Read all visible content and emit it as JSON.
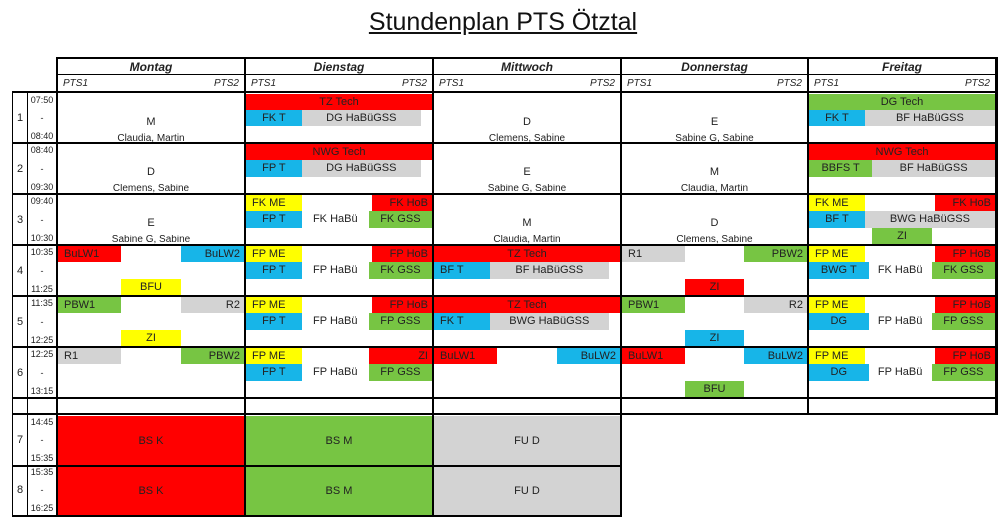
{
  "title": "Stundenplan PTS Ötztal",
  "days": [
    "Montag",
    "Dienstag",
    "Mittwoch",
    "Donnerstag",
    "Freitag"
  ],
  "subheaders": [
    "PTS1",
    "PTS2"
  ],
  "periods": [
    {
      "num": "1",
      "start": "07:50",
      "sep": "-",
      "end": "08:40"
    },
    {
      "num": "2",
      "start": "08:40",
      "sep": "-",
      "end": "09:30"
    },
    {
      "num": "3",
      "start": "09:40",
      "sep": "-",
      "end": "10:30"
    },
    {
      "num": "4",
      "start": "10:35",
      "sep": "-",
      "end": "11:25"
    },
    {
      "num": "5",
      "start": "11:35",
      "sep": "-",
      "end": "12:25"
    },
    {
      "num": "6",
      "start": "12:25",
      "sep": "-",
      "end": "13:15"
    },
    {
      "num": "7",
      "start": "14:45",
      "sep": "-",
      "end": "15:35"
    },
    {
      "num": "8",
      "start": "15:35",
      "sep": "-",
      "end": "16:25"
    }
  ],
  "colors": {
    "red": "#ff0000",
    "blue": "#17b5e8",
    "green": "#77c543",
    "yellow": "#ffff00",
    "gray": "#d3d3d3",
    "white": "#ffffff"
  },
  "cells": [
    {
      "text": "M",
      "d": 0,
      "p": 0,
      "a": 0,
      "b": 1,
      "y0": 0.35,
      "y1": 0.8,
      "bg": "white"
    },
    {
      "text": "Claudia,  Martin",
      "d": 0,
      "p": 0,
      "a": 0,
      "b": 1,
      "y0": 0.8,
      "y1": 1,
      "bg": "white",
      "small": true
    },
    {
      "text": "TZ Tech",
      "d": 1,
      "p": 0,
      "a": 0,
      "b": 1,
      "y0": 0.02,
      "y1": 0.33,
      "bg": "red"
    },
    {
      "text": "FK T",
      "d": 1,
      "p": 0,
      "a": 0,
      "b": 0.3,
      "y0": 0.33,
      "y1": 0.66,
      "bg": "blue"
    },
    {
      "text": "DG HaBüGSS",
      "d": 1,
      "p": 0,
      "a": 0.3,
      "b": 0.94,
      "y0": 0.33,
      "y1": 0.66,
      "bg": "gray"
    },
    {
      "text": "D",
      "d": 2,
      "p": 0,
      "a": 0,
      "b": 1,
      "y0": 0.35,
      "y1": 0.8,
      "bg": "white"
    },
    {
      "text": "Clemens, Sabine",
      "d": 2,
      "p": 0,
      "a": 0,
      "b": 1,
      "y0": 0.8,
      "y1": 1,
      "bg": "white",
      "small": true
    },
    {
      "text": "E",
      "d": 3,
      "p": 0,
      "a": 0,
      "b": 1,
      "y0": 0.35,
      "y1": 0.8,
      "bg": "white"
    },
    {
      "text": "Sabine G, Sabine",
      "d": 3,
      "p": 0,
      "a": 0,
      "b": 1,
      "y0": 0.8,
      "y1": 1,
      "bg": "white",
      "small": true
    },
    {
      "text": "DG Tech",
      "d": 4,
      "p": 0,
      "a": 0,
      "b": 1,
      "y0": 0.02,
      "y1": 0.33,
      "bg": "green"
    },
    {
      "text": "FK T",
      "d": 4,
      "p": 0,
      "a": 0,
      "b": 0.3,
      "y0": 0.33,
      "y1": 0.66,
      "bg": "blue"
    },
    {
      "text": "BF HaBüGSS",
      "d": 4,
      "p": 0,
      "a": 0.3,
      "b": 1,
      "y0": 0.33,
      "y1": 0.66,
      "bg": "gray"
    },
    {
      "text": "D",
      "d": 0,
      "p": 1,
      "a": 0,
      "b": 1,
      "y0": 0.35,
      "y1": 0.8,
      "bg": "white"
    },
    {
      "text": "Clemens, Sabine",
      "d": 0,
      "p": 1,
      "a": 0,
      "b": 1,
      "y0": 0.8,
      "y1": 1,
      "bg": "white",
      "small": true
    },
    {
      "text": "NWG Tech",
      "d": 1,
      "p": 1,
      "a": 0,
      "b": 1,
      "y0": 0.02,
      "y1": 0.33,
      "bg": "red"
    },
    {
      "text": "FP T",
      "d": 1,
      "p": 1,
      "a": 0,
      "b": 0.3,
      "y0": 0.33,
      "y1": 0.66,
      "bg": "blue"
    },
    {
      "text": "DG HaBüGSS",
      "d": 1,
      "p": 1,
      "a": 0.3,
      "b": 0.94,
      "y0": 0.33,
      "y1": 0.66,
      "bg": "gray"
    },
    {
      "text": "E",
      "d": 2,
      "p": 1,
      "a": 0,
      "b": 1,
      "y0": 0.35,
      "y1": 0.8,
      "bg": "white"
    },
    {
      "text": "Sabine G, Sabine",
      "d": 2,
      "p": 1,
      "a": 0,
      "b": 1,
      "y0": 0.8,
      "y1": 1,
      "bg": "white",
      "small": true
    },
    {
      "text": "M",
      "d": 3,
      "p": 1,
      "a": 0,
      "b": 1,
      "y0": 0.35,
      "y1": 0.8,
      "bg": "white"
    },
    {
      "text": "Claudia, Martin",
      "d": 3,
      "p": 1,
      "a": 0,
      "b": 1,
      "y0": 0.8,
      "y1": 1,
      "bg": "white",
      "small": true
    },
    {
      "text": "NWG Tech",
      "d": 4,
      "p": 1,
      "a": 0,
      "b": 1,
      "y0": 0.02,
      "y1": 0.33,
      "bg": "red"
    },
    {
      "text": "BBFS T",
      "d": 4,
      "p": 1,
      "a": 0,
      "b": 0.34,
      "y0": 0.33,
      "y1": 0.66,
      "bg": "green"
    },
    {
      "text": "BF HaBüGSS",
      "d": 4,
      "p": 1,
      "a": 0.34,
      "b": 1,
      "y0": 0.33,
      "y1": 0.66,
      "bg": "gray"
    },
    {
      "text": "E",
      "d": 0,
      "p": 2,
      "a": 0,
      "b": 1,
      "y0": 0.35,
      "y1": 0.8,
      "bg": "white"
    },
    {
      "text": "Sabine G, Sabine",
      "d": 0,
      "p": 2,
      "a": 0,
      "b": 1,
      "y0": 0.8,
      "y1": 1,
      "bg": "white",
      "small": true
    },
    {
      "text": "FK ME",
      "d": 1,
      "p": 2,
      "a": 0,
      "b": 0.3,
      "y0": 0.02,
      "y1": 0.33,
      "bg": "yellow",
      "left": true
    },
    {
      "text": "FK HoB",
      "d": 1,
      "p": 2,
      "a": 0.68,
      "b": 1,
      "y0": 0.02,
      "y1": 0.33,
      "bg": "red",
      "right": true
    },
    {
      "text": "FP T",
      "d": 1,
      "p": 2,
      "a": 0,
      "b": 0.3,
      "y0": 0.33,
      "y1": 0.66,
      "bg": "blue"
    },
    {
      "text": "FK HaBü",
      "d": 1,
      "p": 2,
      "a": 0.3,
      "b": 0.66,
      "y0": 0.33,
      "y1": 0.66,
      "bg": "white"
    },
    {
      "text": "FK GSS",
      "d": 1,
      "p": 2,
      "a": 0.66,
      "b": 1,
      "y0": 0.33,
      "y1": 0.66,
      "bg": "green"
    },
    {
      "text": "M",
      "d": 2,
      "p": 2,
      "a": 0,
      "b": 1,
      "y0": 0.35,
      "y1": 0.8,
      "bg": "white"
    },
    {
      "text": "Claudia, Martin",
      "d": 2,
      "p": 2,
      "a": 0,
      "b": 1,
      "y0": 0.8,
      "y1": 1,
      "bg": "white",
      "small": true
    },
    {
      "text": "D",
      "d": 3,
      "p": 2,
      "a": 0,
      "b": 1,
      "y0": 0.35,
      "y1": 0.8,
      "bg": "white"
    },
    {
      "text": "Clemens, Sabine",
      "d": 3,
      "p": 2,
      "a": 0,
      "b": 1,
      "y0": 0.8,
      "y1": 1,
      "bg": "white",
      "small": true
    },
    {
      "text": "FK ME",
      "d": 4,
      "p": 2,
      "a": 0,
      "b": 0.3,
      "y0": 0.02,
      "y1": 0.33,
      "bg": "yellow",
      "left": true
    },
    {
      "text": "FK HoB",
      "d": 4,
      "p": 2,
      "a": 0.68,
      "b": 1,
      "y0": 0.02,
      "y1": 0.33,
      "bg": "red",
      "right": true
    },
    {
      "text": "BF T",
      "d": 4,
      "p": 2,
      "a": 0,
      "b": 0.3,
      "y0": 0.33,
      "y1": 0.66,
      "bg": "blue"
    },
    {
      "text": "BWG HaBüGSS",
      "d": 4,
      "p": 2,
      "a": 0.3,
      "b": 1,
      "y0": 0.33,
      "y1": 0.66,
      "bg": "gray"
    },
    {
      "text": "ZI",
      "d": 4,
      "p": 2,
      "a": 0.34,
      "b": 0.66,
      "y0": 0.66,
      "y1": 0.98,
      "bg": "green"
    },
    {
      "text": "BuLW1",
      "d": 0,
      "p": 3,
      "a": 0,
      "b": 0.34,
      "y0": 0.02,
      "y1": 0.33,
      "bg": "red",
      "left": true
    },
    {
      "text": "BuLW2",
      "d": 0,
      "p": 3,
      "a": 0.66,
      "b": 1,
      "y0": 0.02,
      "y1": 0.33,
      "bg": "blue",
      "right": true
    },
    {
      "text": "BFU",
      "d": 0,
      "p": 3,
      "a": 0.34,
      "b": 0.66,
      "y0": 0.66,
      "y1": 0.98,
      "bg": "yellow"
    },
    {
      "text": "FP ME",
      "d": 1,
      "p": 3,
      "a": 0,
      "b": 0.3,
      "y0": 0.02,
      "y1": 0.33,
      "bg": "yellow",
      "left": true
    },
    {
      "text": "FP HoB",
      "d": 1,
      "p": 3,
      "a": 0.68,
      "b": 1,
      "y0": 0.02,
      "y1": 0.33,
      "bg": "red",
      "right": true
    },
    {
      "text": "FP T",
      "d": 1,
      "p": 3,
      "a": 0,
      "b": 0.3,
      "y0": 0.33,
      "y1": 0.66,
      "bg": "blue"
    },
    {
      "text": "FP HaBü",
      "d": 1,
      "p": 3,
      "a": 0.3,
      "b": 0.66,
      "y0": 0.33,
      "y1": 0.66,
      "bg": "white"
    },
    {
      "text": "FK GSS",
      "d": 1,
      "p": 3,
      "a": 0.66,
      "b": 1,
      "y0": 0.33,
      "y1": 0.66,
      "bg": "green"
    },
    {
      "text": "TZ Tech",
      "d": 2,
      "p": 3,
      "a": 0,
      "b": 1,
      "y0": 0.02,
      "y1": 0.33,
      "bg": "red"
    },
    {
      "text": "BF T",
      "d": 2,
      "p": 3,
      "a": 0,
      "b": 0.3,
      "y0": 0.33,
      "y1": 0.66,
      "bg": "blue",
      "left": true
    },
    {
      "text": "BF HaBüGSS",
      "d": 2,
      "p": 3,
      "a": 0.3,
      "b": 0.94,
      "y0": 0.33,
      "y1": 0.66,
      "bg": "gray"
    },
    {
      "text": "R1",
      "d": 3,
      "p": 3,
      "a": 0,
      "b": 0.34,
      "y0": 0.02,
      "y1": 0.33,
      "bg": "gray",
      "left": true
    },
    {
      "text": "PBW2",
      "d": 3,
      "p": 3,
      "a": 0.66,
      "b": 1,
      "y0": 0.02,
      "y1": 0.33,
      "bg": "green",
      "right": true
    },
    {
      "text": "ZI",
      "d": 3,
      "p": 3,
      "a": 0.34,
      "b": 0.66,
      "y0": 0.66,
      "y1": 0.98,
      "bg": "red"
    },
    {
      "text": "FP ME",
      "d": 4,
      "p": 3,
      "a": 0,
      "b": 0.3,
      "y0": 0.02,
      "y1": 0.33,
      "bg": "yellow",
      "left": true
    },
    {
      "text": "FP HoB",
      "d": 4,
      "p": 3,
      "a": 0.68,
      "b": 1,
      "y0": 0.02,
      "y1": 0.33,
      "bg": "red",
      "right": true
    },
    {
      "text": "BWG T",
      "d": 4,
      "p": 3,
      "a": 0,
      "b": 0.32,
      "y0": 0.33,
      "y1": 0.66,
      "bg": "blue"
    },
    {
      "text": "FK HaBü",
      "d": 4,
      "p": 3,
      "a": 0.32,
      "b": 0.66,
      "y0": 0.33,
      "y1": 0.66,
      "bg": "white"
    },
    {
      "text": "FK GSS",
      "d": 4,
      "p": 3,
      "a": 0.66,
      "b": 1,
      "y0": 0.33,
      "y1": 0.66,
      "bg": "green"
    },
    {
      "text": "PBW1",
      "d": 0,
      "p": 4,
      "a": 0,
      "b": 0.34,
      "y0": 0.02,
      "y1": 0.33,
      "bg": "green",
      "left": true
    },
    {
      "text": "R2",
      "d": 0,
      "p": 4,
      "a": 0.66,
      "b": 1,
      "y0": 0.02,
      "y1": 0.33,
      "bg": "gray",
      "right": true
    },
    {
      "text": "ZI",
      "d": 0,
      "p": 4,
      "a": 0.34,
      "b": 0.66,
      "y0": 0.66,
      "y1": 0.98,
      "bg": "yellow"
    },
    {
      "text": "FP ME",
      "d": 1,
      "p": 4,
      "a": 0,
      "b": 0.3,
      "y0": 0.02,
      "y1": 0.33,
      "bg": "yellow",
      "left": true
    },
    {
      "text": "FP HoB",
      "d": 1,
      "p": 4,
      "a": 0.68,
      "b": 1,
      "y0": 0.02,
      "y1": 0.33,
      "bg": "red",
      "right": true
    },
    {
      "text": "FP T",
      "d": 1,
      "p": 4,
      "a": 0,
      "b": 0.3,
      "y0": 0.33,
      "y1": 0.66,
      "bg": "blue"
    },
    {
      "text": "FP HaBü",
      "d": 1,
      "p": 4,
      "a": 0.3,
      "b": 0.66,
      "y0": 0.33,
      "y1": 0.66,
      "bg": "white"
    },
    {
      "text": "FP GSS",
      "d": 1,
      "p": 4,
      "a": 0.66,
      "b": 1,
      "y0": 0.33,
      "y1": 0.66,
      "bg": "green"
    },
    {
      "text": "TZ Tech",
      "d": 2,
      "p": 4,
      "a": 0,
      "b": 1,
      "y0": 0.02,
      "y1": 0.33,
      "bg": "red"
    },
    {
      "text": "FK T",
      "d": 2,
      "p": 4,
      "a": 0,
      "b": 0.3,
      "y0": 0.33,
      "y1": 0.66,
      "bg": "blue",
      "left": true
    },
    {
      "text": "BWG HaBüGSS",
      "d": 2,
      "p": 4,
      "a": 0.3,
      "b": 0.94,
      "y0": 0.33,
      "y1": 0.66,
      "bg": "gray"
    },
    {
      "text": "PBW1",
      "d": 3,
      "p": 4,
      "a": 0,
      "b": 0.34,
      "y0": 0.02,
      "y1": 0.33,
      "bg": "green",
      "left": true
    },
    {
      "text": "R2",
      "d": 3,
      "p": 4,
      "a": 0.66,
      "b": 1,
      "y0": 0.02,
      "y1": 0.33,
      "bg": "gray",
      "right": true
    },
    {
      "text": "ZI",
      "d": 3,
      "p": 4,
      "a": 0.34,
      "b": 0.66,
      "y0": 0.66,
      "y1": 0.98,
      "bg": "blue"
    },
    {
      "text": "FP ME",
      "d": 4,
      "p": 4,
      "a": 0,
      "b": 0.3,
      "y0": 0.02,
      "y1": 0.33,
      "bg": "yellow",
      "left": true
    },
    {
      "text": "FP HoB",
      "d": 4,
      "p": 4,
      "a": 0.68,
      "b": 1,
      "y0": 0.02,
      "y1": 0.33,
      "bg": "red",
      "right": true
    },
    {
      "text": "DG",
      "d": 4,
      "p": 4,
      "a": 0,
      "b": 0.32,
      "y0": 0.33,
      "y1": 0.66,
      "bg": "blue"
    },
    {
      "text": "FP HaBü",
      "d": 4,
      "p": 4,
      "a": 0.32,
      "b": 0.66,
      "y0": 0.33,
      "y1": 0.66,
      "bg": "white"
    },
    {
      "text": "FP GSS",
      "d": 4,
      "p": 4,
      "a": 0.66,
      "b": 1,
      "y0": 0.33,
      "y1": 0.66,
      "bg": "green"
    },
    {
      "text": "R1",
      "d": 0,
      "p": 5,
      "a": 0,
      "b": 0.34,
      "y0": 0.02,
      "y1": 0.33,
      "bg": "gray",
      "left": true
    },
    {
      "text": "PBW2",
      "d": 0,
      "p": 5,
      "a": 0.66,
      "b": 1,
      "y0": 0.02,
      "y1": 0.33,
      "bg": "green",
      "right": true
    },
    {
      "text": "FP ME",
      "d": 1,
      "p": 5,
      "a": 0,
      "b": 0.3,
      "y0": 0.02,
      "y1": 0.33,
      "bg": "yellow",
      "left": true
    },
    {
      "text": "ZI",
      "d": 1,
      "p": 5,
      "a": 0.66,
      "b": 1,
      "y0": 0.02,
      "y1": 0.33,
      "bg": "red",
      "right": true
    },
    {
      "text": "FP T",
      "d": 1,
      "p": 5,
      "a": 0,
      "b": 0.3,
      "y0": 0.33,
      "y1": 0.66,
      "bg": "blue"
    },
    {
      "text": "FP HaBü",
      "d": 1,
      "p": 5,
      "a": 0.3,
      "b": 0.66,
      "y0": 0.33,
      "y1": 0.66,
      "bg": "white"
    },
    {
      "text": "FP GSS",
      "d": 1,
      "p": 5,
      "a": 0.66,
      "b": 1,
      "y0": 0.33,
      "y1": 0.66,
      "bg": "green"
    },
    {
      "text": "BuLW1",
      "d": 2,
      "p": 5,
      "a": 0,
      "b": 0.34,
      "y0": 0.02,
      "y1": 0.33,
      "bg": "red",
      "left": true
    },
    {
      "text": "BuLW2",
      "d": 2,
      "p": 5,
      "a": 0.66,
      "b": 1,
      "y0": 0.02,
      "y1": 0.33,
      "bg": "blue",
      "right": true
    },
    {
      "text": "BuLW1",
      "d": 3,
      "p": 5,
      "a": 0,
      "b": 0.34,
      "y0": 0.02,
      "y1": 0.33,
      "bg": "red",
      "left": true
    },
    {
      "text": "BuLW2",
      "d": 3,
      "p": 5,
      "a": 0.66,
      "b": 1,
      "y0": 0.02,
      "y1": 0.33,
      "bg": "blue",
      "right": true
    },
    {
      "text": "BFU",
      "d": 3,
      "p": 5,
      "a": 0.34,
      "b": 0.66,
      "y0": 0.66,
      "y1": 0.98,
      "bg": "green"
    },
    {
      "text": "FP ME",
      "d": 4,
      "p": 5,
      "a": 0,
      "b": 0.3,
      "y0": 0.02,
      "y1": 0.33,
      "bg": "yellow",
      "left": true
    },
    {
      "text": "FP HoB",
      "d": 4,
      "p": 5,
      "a": 0.68,
      "b": 1,
      "y0": 0.02,
      "y1": 0.33,
      "bg": "red",
      "right": true
    },
    {
      "text": "DG",
      "d": 4,
      "p": 5,
      "a": 0,
      "b": 0.32,
      "y0": 0.33,
      "y1": 0.66,
      "bg": "blue"
    },
    {
      "text": "FP HaBü",
      "d": 4,
      "p": 5,
      "a": 0.32,
      "b": 0.66,
      "y0": 0.33,
      "y1": 0.66,
      "bg": "white"
    },
    {
      "text": "FP GSS",
      "d": 4,
      "p": 5,
      "a": 0.66,
      "b": 1,
      "y0": 0.33,
      "y1": 0.66,
      "bg": "green"
    }
  ],
  "afternoon": [
    {
      "text": "BS K",
      "d": 0,
      "bg": "red"
    },
    {
      "text": "BS M",
      "d": 1,
      "bg": "green"
    },
    {
      "text": "FU D",
      "d": 2,
      "bg": "gray"
    }
  ]
}
